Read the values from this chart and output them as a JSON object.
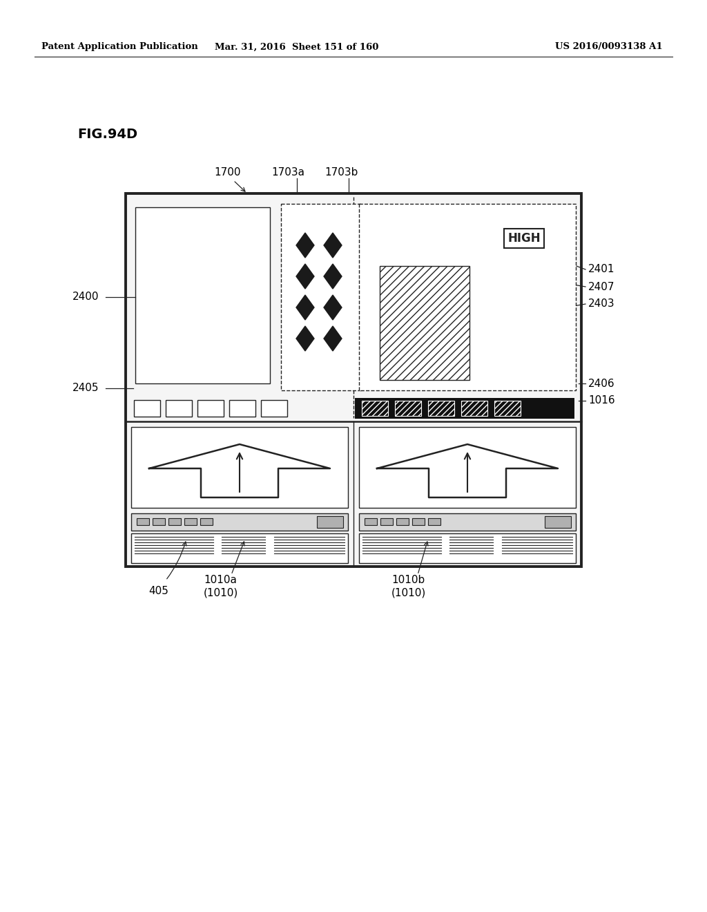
{
  "header_left": "Patent Application Publication",
  "header_mid": "Mar. 31, 2016  Sheet 151 of 160",
  "header_right": "US 2016/0093138 A1",
  "fig_label": "FIG.94D",
  "bg_color": "#ffffff",
  "line_color": "#222222"
}
